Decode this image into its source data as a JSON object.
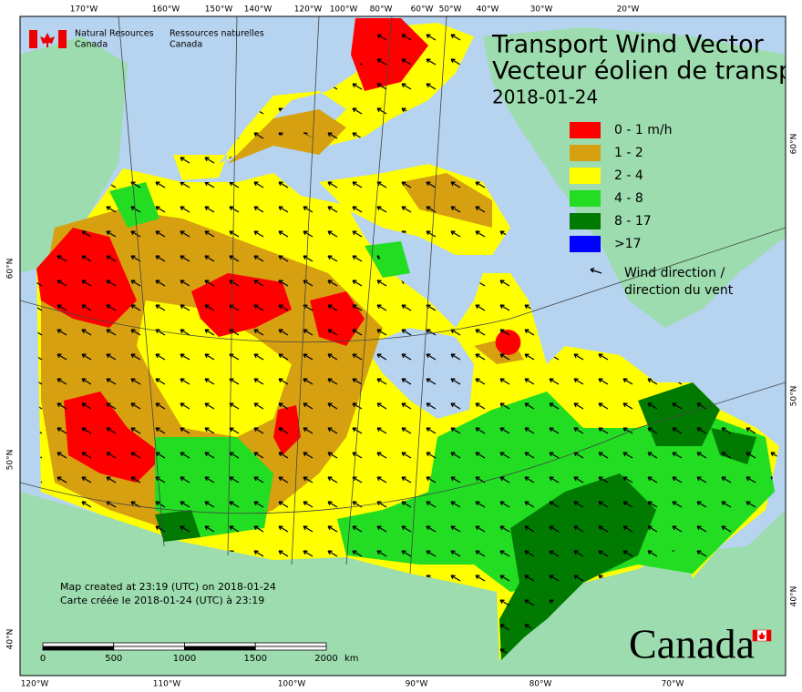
{
  "header": {
    "agency_en": [
      "Natural Resources",
      "Canada"
    ],
    "agency_fr": [
      "Ressources naturelles",
      "Canada"
    ]
  },
  "title": [
    "Transport Wind Vector",
    "Vecteur éolien de transp"
  ],
  "date": "2018-01-24",
  "legend": {
    "items": [
      {
        "label": "0 - 1 m/h",
        "color": "#ff0000"
      },
      {
        "label": "1 - 2",
        "color": "#d6a010"
      },
      {
        "label": "2 - 4",
        "color": "#ffff00"
      },
      {
        "label": "4 - 8",
        "color": "#22dd22"
      },
      {
        "label": "8 - 17",
        "color": "#007a00"
      },
      {
        "label": ">17",
        "color": "#0000ff"
      }
    ],
    "arrow_label": [
      "Wind direction /",
      "direction du vent"
    ]
  },
  "graticule": {
    "top": [
      "170°W",
      "160°W",
      "150°W",
      "140°W",
      "120°W",
      "100°W",
      "80°W",
      "60°W",
      "50°W",
      "40°W",
      "30°W",
      "20°W"
    ],
    "bottom": [
      "120°W",
      "110°W",
      "100°W",
      "90°W",
      "80°W",
      "70°W"
    ],
    "left": [
      "60°N",
      "50°N",
      "40°N"
    ],
    "right": [
      "60°N",
      "50°N",
      "40°N"
    ]
  },
  "scale": {
    "ticks": [
      "0",
      "500",
      "1000",
      "1500",
      "2000"
    ],
    "unit": "km"
  },
  "credits": [
    "Map created at 23:19 (UTC) on 2018-01-24",
    "Carte créée le 2018-01-24 (UTC) à 23:19"
  ],
  "wordmark": "Canada"
}
